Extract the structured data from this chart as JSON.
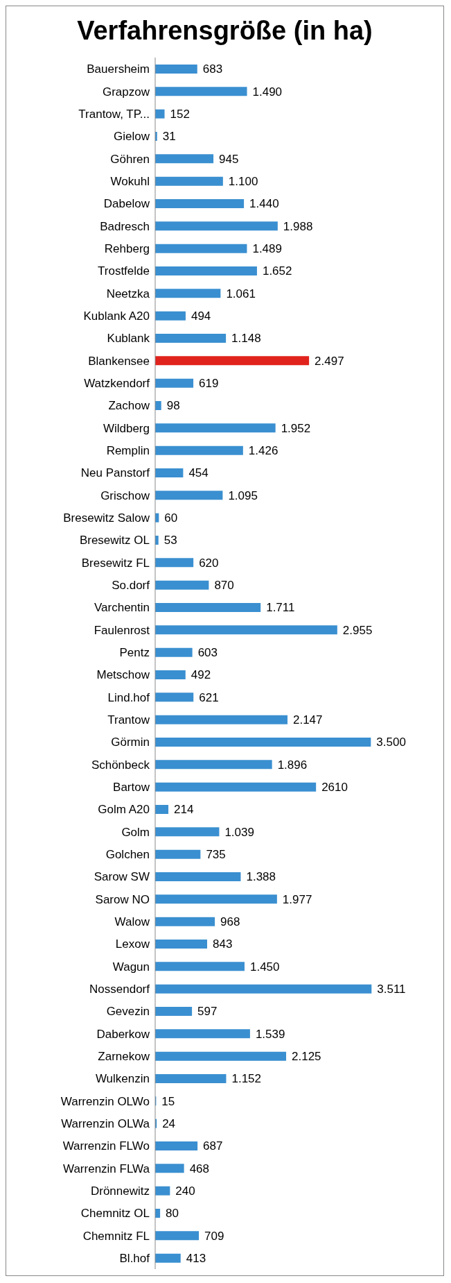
{
  "chart_data": {
    "type": "bar",
    "orientation": "horizontal",
    "title": "Verfahrensgröße (in ha)",
    "categories": [
      "Bauersheim",
      "Grapzow",
      "Trantow, TP...",
      "Gielow",
      "Göhren",
      "Wokuhl",
      "Dabelow",
      "Badresch",
      "Rehberg",
      "Trostfelde",
      "Neetzka",
      "Kublank A20",
      "Kublank",
      "Blankensee",
      "Watzkendorf",
      "Zachow",
      "Wildberg",
      "Remplin",
      "Neu Panstorf",
      "Grischow",
      "Bresewitz Salow",
      "Bresewitz OL",
      "Bresewitz FL",
      "So.dorf",
      "Varchentin",
      "Faulenrost",
      "Pentz",
      "Metschow",
      "Lind.hof",
      "Trantow",
      "Görmin",
      "Schönbeck",
      "Bartow",
      "Golm A20",
      "Golm",
      "Golchen",
      "Sarow SW",
      "Sarow NO",
      "Walow",
      "Lexow",
      "Wagun",
      "Nossendorf",
      "Gevezin",
      "Daberkow",
      "Zarnekow",
      "Wulkenzin",
      "Warrenzin OLWo",
      "Warrenzin OLWa",
      "Warrenzin FLWo",
      "Warrenzin FLWa",
      "Drönnewitz",
      "Chemnitz OL",
      "Chemnitz FL",
      "Bl.hof"
    ],
    "values": [
      683,
      1490,
      152,
      31,
      945,
      1100,
      1440,
      1988,
      1489,
      1652,
      1061,
      494,
      1148,
      2497,
      619,
      98,
      1952,
      1426,
      454,
      1095,
      60,
      53,
      620,
      870,
      1711,
      2955,
      603,
      492,
      621,
      2147,
      3500,
      1896,
      2610,
      214,
      1039,
      735,
      1388,
      1977,
      968,
      843,
      1450,
      3511,
      597,
      1539,
      2125,
      1152,
      15,
      24,
      687,
      468,
      240,
      80,
      709,
      413
    ],
    "value_labels": [
      "683",
      "1.490",
      "152",
      "31",
      "945",
      "1.100",
      "1.440",
      "1.988",
      "1.489",
      "1.652",
      "1.061",
      "494",
      "1.148",
      "2.497",
      "619",
      "98",
      "1.952",
      "1.426",
      "454",
      "1.095",
      "60",
      "53",
      "620",
      "870",
      "1.711",
      "2.955",
      "603",
      "492",
      "621",
      "2.147",
      "3.500",
      "1.896",
      "2610",
      "214",
      "1.039",
      "735",
      "1.388",
      "1.977",
      "968",
      "843",
      "1.450",
      "3.511",
      "597",
      "1.539",
      "2.125",
      "1.152",
      "15",
      "24",
      "687",
      "468",
      "240",
      "80",
      "709",
      "413"
    ],
    "colors": [
      "#3a8fd0",
      "#3a8fd0",
      "#3a8fd0",
      "#3a8fd0",
      "#3a8fd0",
      "#3a8fd0",
      "#3a8fd0",
      "#3a8fd0",
      "#3a8fd0",
      "#3a8fd0",
      "#3a8fd0",
      "#3a8fd0",
      "#3a8fd0",
      "#e0231c",
      "#3a8fd0",
      "#3a8fd0",
      "#3a8fd0",
      "#3a8fd0",
      "#3a8fd0",
      "#3a8fd0",
      "#3a8fd0",
      "#3a8fd0",
      "#3a8fd0",
      "#3a8fd0",
      "#3a8fd0",
      "#3a8fd0",
      "#3a8fd0",
      "#3a8fd0",
      "#3a8fd0",
      "#3a8fd0",
      "#3a8fd0",
      "#3a8fd0",
      "#3a8fd0",
      "#3a8fd0",
      "#3a8fd0",
      "#3a8fd0",
      "#3a8fd0",
      "#3a8fd0",
      "#3a8fd0",
      "#3a8fd0",
      "#3a8fd0",
      "#3a8fd0",
      "#3a8fd0",
      "#3a8fd0",
      "#3a8fd0",
      "#3a8fd0",
      "#3a8fd0",
      "#3a8fd0",
      "#3a8fd0",
      "#3a8fd0",
      "#3a8fd0",
      "#3a8fd0",
      "#3a8fd0",
      "#3a8fd0"
    ],
    "tick_labels": "y"
  }
}
